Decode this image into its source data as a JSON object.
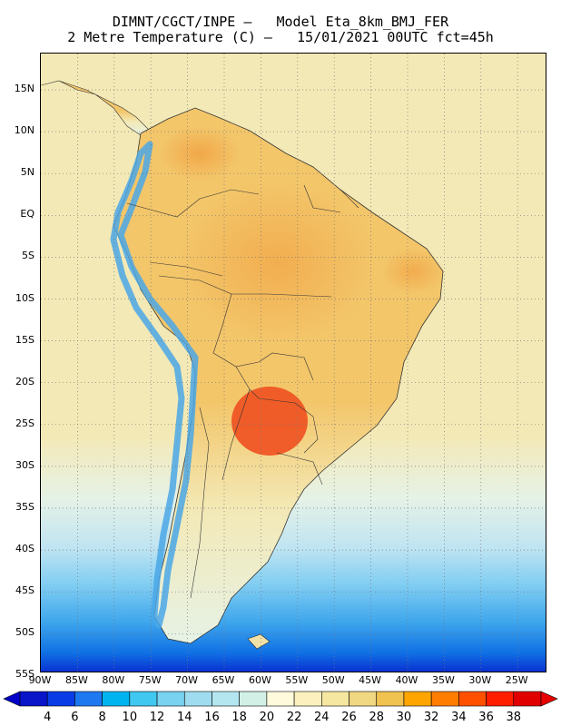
{
  "header": {
    "line1": "DIMNT/CGCT/INPE –   Model Eta_8km_BMJ_FER",
    "line2": "2 Metre Temperature (C) –   15/01/2021 00UTC fct=45h"
  },
  "axes": {
    "lat_labels": [
      "15N",
      "10N",
      "5N",
      "EQ",
      "5S",
      "10S",
      "15S",
      "20S",
      "25S",
      "30S",
      "35S",
      "40S",
      "45S",
      "50S",
      "55S"
    ],
    "lon_labels": [
      "90W",
      "85W",
      "80W",
      "75W",
      "70W",
      "65W",
      "60W",
      "55W",
      "50W",
      "45W",
      "40W",
      "35W",
      "30W",
      "25W"
    ]
  },
  "colorbar": {
    "labels": [
      "4",
      "6",
      "8",
      "10",
      "12",
      "14",
      "16",
      "18",
      "20",
      "22",
      "24",
      "26",
      "28",
      "30",
      "32",
      "34",
      "36",
      "38"
    ],
    "colors": [
      "#0a14c8",
      "#0a3ce6",
      "#1e78f0",
      "#00b4f0",
      "#40c8f0",
      "#78d2f0",
      "#a0dcf0",
      "#b4e6f0",
      "#d2f0e6",
      "#fffadc",
      "#fcf0be",
      "#f5e6a0",
      "#f0d782",
      "#f0c350",
      "#ffa500",
      "#ff7d00",
      "#ff5000",
      "#ff1e00",
      "#e10000"
    ],
    "under_color": "#0000c8",
    "over_color": "#e60000"
  },
  "map": {
    "ocean_color": "#f3e9b6",
    "land_color": "#f3c66a",
    "hot_color": "#f09a3a",
    "hotspot_color": "#f05020",
    "andes_color": "#4aa7e6",
    "cold_ocean_colors": [
      "#e6f2e6",
      "#bfe4f2",
      "#80cdf2",
      "#3ea6ec",
      "#1070e4",
      "#0a32d2"
    ]
  }
}
